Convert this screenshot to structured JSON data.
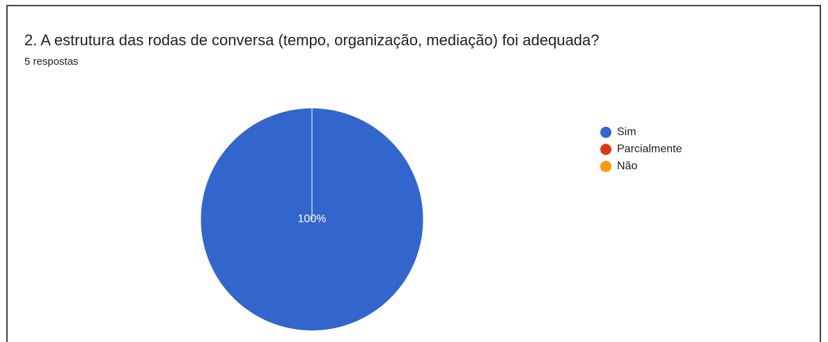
{
  "chart_data": {
    "type": "pie",
    "title": "2.  A estrutura das rodas de conversa (tempo, organização, mediação) foi adequada?",
    "subtitle": "5 respostas",
    "categories": [
      "Sim",
      "Parcialmente",
      "Não"
    ],
    "values": [
      100,
      0,
      0
    ],
    "value_labels": [
      "100%",
      null,
      null
    ],
    "colors": [
      "#3366cc",
      "#dc3912",
      "#ff9900"
    ],
    "legend": "right"
  }
}
